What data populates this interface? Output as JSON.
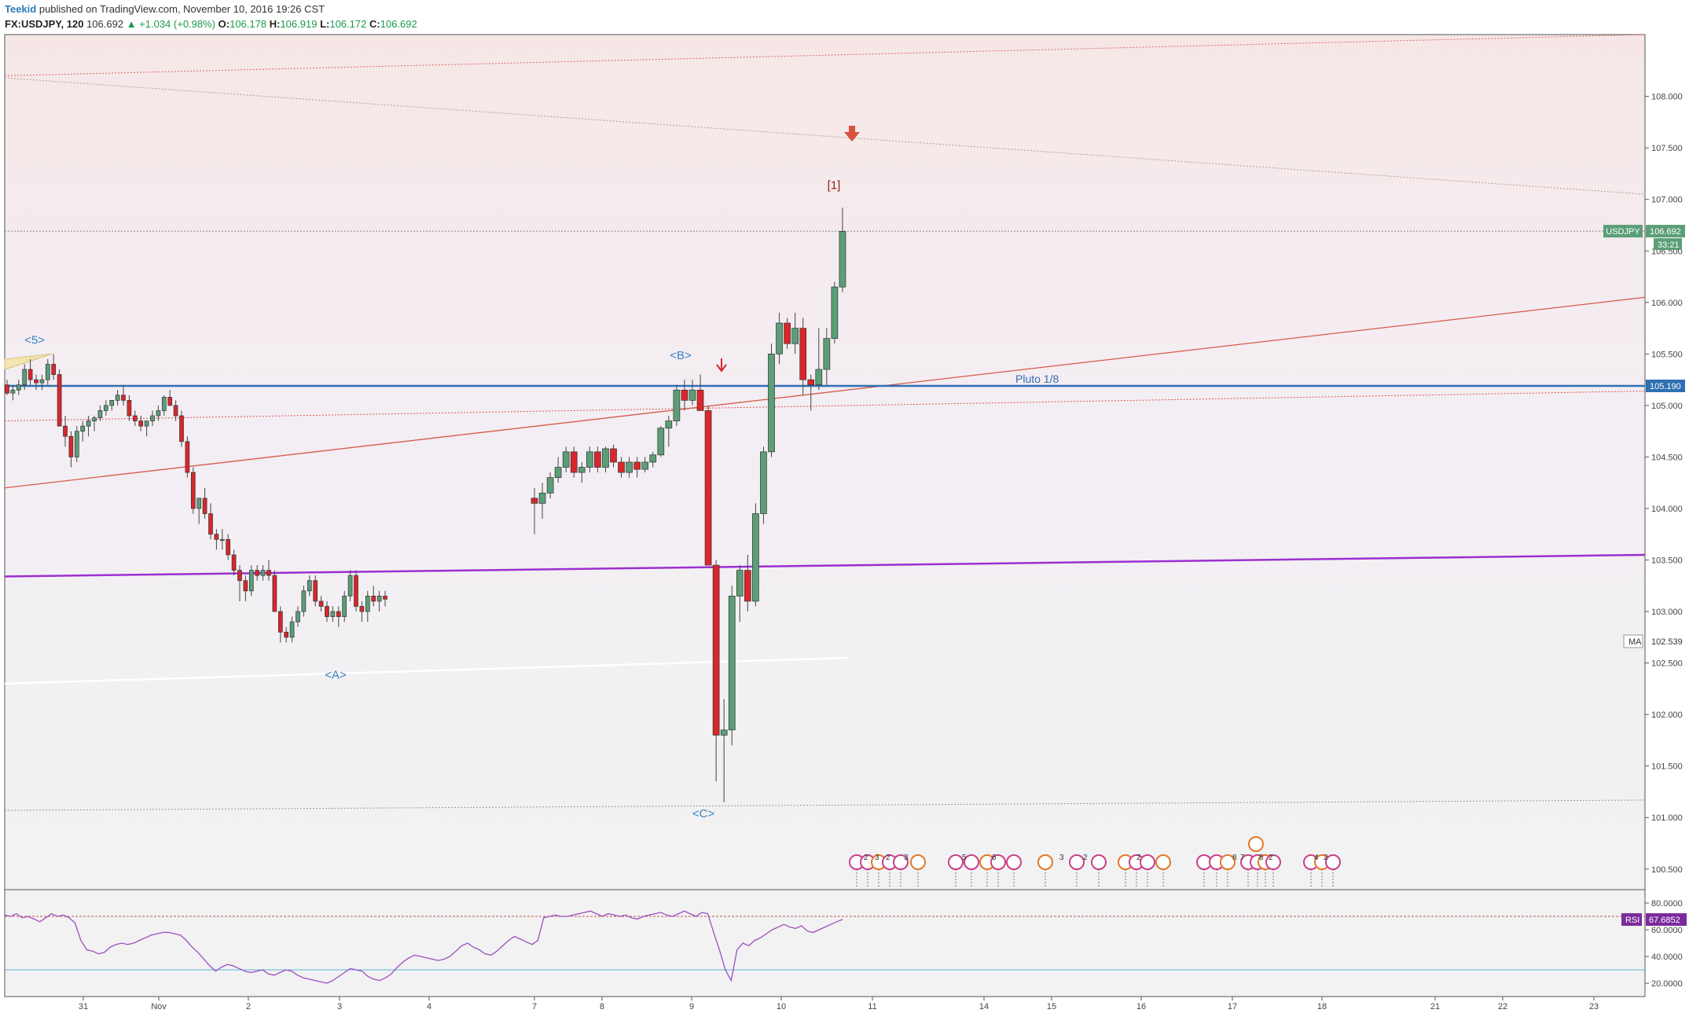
{
  "header": {
    "user": "Teekid",
    "published": "published on TradingView.com, November 10, 2016 19:26 CST",
    "symbol": "FX:USDJPY, 120",
    "last": "106.692",
    "change": "▲ +1.034 (+0.98%)",
    "o_label": "O:",
    "o_value": "106.178",
    "h_label": "H:",
    "h_value": "106.919",
    "l_label": "L:",
    "l_value": "106.172",
    "c_label": "C:",
    "c_value": "106.692"
  },
  "colors": {
    "up": "#5b9e78",
    "down": "#d9262b",
    "wave_label": "#3b82c4",
    "pluto_line": "#2f6fb3",
    "purple_line": "#9b2fd1",
    "red_trend": "#d65a4a",
    "rsi_line": "#9b4fc0",
    "rsi_badge": "#7b2a9c",
    "price_badge": "#5b9e78",
    "pluto_badge": "#2f6fb3"
  },
  "chart_data": {
    "type": "candlestick",
    "title": "FX:USDJPY, 120",
    "ylim": [
      100.3,
      108.6
    ],
    "y_ticks": [
      "108.000",
      "107.500",
      "107.000",
      "106.500",
      "106.000",
      "105.500",
      "105.000",
      "104.500",
      "104.000",
      "103.500",
      "103.000",
      "102.500",
      "102.000",
      "101.500",
      "101.000",
      "100.500"
    ],
    "x_ticks": [
      "31",
      "Nov",
      "2",
      "3",
      "4",
      "7",
      "8",
      "9",
      "10",
      "11",
      "14",
      "15",
      "16",
      "17",
      "18",
      "21",
      "22",
      "23"
    ],
    "candles": [
      [
        105.2,
        105.25,
        105.1,
        105.12
      ],
      [
        105.12,
        105.2,
        105.05,
        105.15
      ],
      [
        105.15,
        105.25,
        105.1,
        105.2
      ],
      [
        105.2,
        105.4,
        105.15,
        105.35
      ],
      [
        105.35,
        105.45,
        105.2,
        105.25
      ],
      [
        105.25,
        105.3,
        105.15,
        105.22
      ],
      [
        105.22,
        105.3,
        105.15,
        105.25
      ],
      [
        105.25,
        105.45,
        105.2,
        105.4
      ],
      [
        105.4,
        105.5,
        105.25,
        105.3
      ],
      [
        105.3,
        105.35,
        104.85,
        104.8
      ],
      [
        104.8,
        104.9,
        104.6,
        104.7
      ],
      [
        104.7,
        104.75,
        104.4,
        104.5
      ],
      [
        104.5,
        104.8,
        104.45,
        104.75
      ],
      [
        104.75,
        104.85,
        104.65,
        104.8
      ],
      [
        104.8,
        104.9,
        104.7,
        104.85
      ],
      [
        104.85,
        104.9,
        104.75,
        104.88
      ],
      [
        104.88,
        105.0,
        104.85,
        104.95
      ],
      [
        104.95,
        105.05,
        104.9,
        105.0
      ],
      [
        105.0,
        105.05,
        104.95,
        105.05
      ],
      [
        105.05,
        105.15,
        105.0,
        105.1
      ],
      [
        105.1,
        105.2,
        105.0,
        105.05
      ],
      [
        105.05,
        105.1,
        104.85,
        104.9
      ],
      [
        104.9,
        104.95,
        104.8,
        104.85
      ],
      [
        104.85,
        104.9,
        104.75,
        104.8
      ],
      [
        104.8,
        104.85,
        104.7,
        104.85
      ],
      [
        104.85,
        104.95,
        104.8,
        104.9
      ],
      [
        104.9,
        105.0,
        104.85,
        104.95
      ],
      [
        104.95,
        105.1,
        104.9,
        105.08
      ],
      [
        105.08,
        105.15,
        105.0,
        105.0
      ],
      [
        105.0,
        105.05,
        104.85,
        104.9
      ],
      [
        104.9,
        104.95,
        104.6,
        104.65
      ],
      [
        104.65,
        104.7,
        104.3,
        104.35
      ],
      [
        104.35,
        104.4,
        103.95,
        104.0
      ],
      [
        104.0,
        104.1,
        103.85,
        104.1
      ],
      [
        104.1,
        104.2,
        103.9,
        103.95
      ],
      [
        103.95,
        104.05,
        103.7,
        103.75
      ],
      [
        103.75,
        103.8,
        103.6,
        103.7
      ],
      [
        103.7,
        103.8,
        103.6,
        103.7
      ],
      [
        103.7,
        103.75,
        103.5,
        103.55
      ],
      [
        103.55,
        103.6,
        103.35,
        103.4
      ],
      [
        103.4,
        103.45,
        103.1,
        103.3
      ],
      [
        103.3,
        103.35,
        103.1,
        103.2
      ],
      [
        103.2,
        103.45,
        103.15,
        103.4
      ],
      [
        103.4,
        103.45,
        103.3,
        103.35
      ],
      [
        103.35,
        103.45,
        103.3,
        103.4
      ],
      [
        103.4,
        103.5,
        103.3,
        103.35
      ],
      [
        103.35,
        103.4,
        103.0,
        103.0
      ],
      [
        103.0,
        103.05,
        102.7,
        102.8
      ],
      [
        102.8,
        102.85,
        102.7,
        102.75
      ],
      [
        102.75,
        102.95,
        102.7,
        102.9
      ],
      [
        102.9,
        103.05,
        102.85,
        103.0
      ],
      [
        103.0,
        103.25,
        102.95,
        103.2
      ],
      [
        103.2,
        103.35,
        103.15,
        103.3
      ],
      [
        103.3,
        103.35,
        103.05,
        103.1
      ],
      [
        103.1,
        103.15,
        103.0,
        103.05
      ],
      [
        103.05,
        103.1,
        102.9,
        102.95
      ],
      [
        102.95,
        103.05,
        102.9,
        103.0
      ],
      [
        103.0,
        103.05,
        102.85,
        102.95
      ],
      [
        102.95,
        103.2,
        102.9,
        103.15
      ],
      [
        103.15,
        103.4,
        103.1,
        103.35
      ],
      [
        103.35,
        103.4,
        103.0,
        103.05
      ],
      [
        103.05,
        103.1,
        102.9,
        103.0
      ],
      [
        103.0,
        103.2,
        102.9,
        103.15
      ],
      [
        103.15,
        103.25,
        103.05,
        103.1
      ],
      [
        103.1,
        103.2,
        103.0,
        103.15
      ],
      [
        103.15,
        103.2,
        103.05,
        103.12
      ],
      [
        104.1,
        104.2,
        103.75,
        104.05
      ],
      [
        104.05,
        104.25,
        103.9,
        104.15
      ],
      [
        104.15,
        104.35,
        104.1,
        104.3
      ],
      [
        104.3,
        104.5,
        104.25,
        104.4
      ],
      [
        104.4,
        104.6,
        104.35,
        104.55
      ],
      [
        104.55,
        104.6,
        104.3,
        104.35
      ],
      [
        104.35,
        104.45,
        104.25,
        104.4
      ],
      [
        104.4,
        104.6,
        104.35,
        104.55
      ],
      [
        104.55,
        104.6,
        104.35,
        104.4
      ],
      [
        104.4,
        104.6,
        104.35,
        104.58
      ],
      [
        104.58,
        104.62,
        104.4,
        104.45
      ],
      [
        104.45,
        104.5,
        104.3,
        104.35
      ],
      [
        104.35,
        104.5,
        104.3,
        104.45
      ],
      [
        104.45,
        104.5,
        104.3,
        104.38
      ],
      [
        104.38,
        104.5,
        104.35,
        104.45
      ],
      [
        104.45,
        104.55,
        104.4,
        104.52
      ],
      [
        104.52,
        104.8,
        104.5,
        104.78
      ],
      [
        104.78,
        104.9,
        104.6,
        104.85
      ],
      [
        104.85,
        105.2,
        104.8,
        105.15
      ],
      [
        105.15,
        105.25,
        104.95,
        105.05
      ],
      [
        105.05,
        105.25,
        105.0,
        105.15
      ],
      [
        105.15,
        105.3,
        105.0,
        104.95
      ],
      [
        104.95,
        105.0,
        103.5,
        103.45
      ],
      [
        103.45,
        103.5,
        101.35,
        101.8
      ],
      [
        101.8,
        102.15,
        101.15,
        101.85
      ],
      [
        101.85,
        103.25,
        101.7,
        103.15
      ],
      [
        103.15,
        103.45,
        102.9,
        103.4
      ],
      [
        103.4,
        103.55,
        103.0,
        103.1
      ],
      [
        103.1,
        104.05,
        103.05,
        103.95
      ],
      [
        103.95,
        104.6,
        103.85,
        104.55
      ],
      [
        104.55,
        105.6,
        104.5,
        105.5
      ],
      [
        105.5,
        105.9,
        105.4,
        105.8
      ],
      [
        105.8,
        105.85,
        105.55,
        105.6
      ],
      [
        105.6,
        105.9,
        105.5,
        105.75
      ],
      [
        105.75,
        105.85,
        105.1,
        105.25
      ],
      [
        105.25,
        105.3,
        104.95,
        105.2
      ],
      [
        105.2,
        105.75,
        105.15,
        105.35
      ],
      [
        105.35,
        105.75,
        105.2,
        105.65
      ],
      [
        105.65,
        106.2,
        105.6,
        106.15
      ],
      [
        106.15,
        106.92,
        106.1,
        106.69
      ]
    ],
    "current_price": "106.692",
    "price_label": "USDJPY",
    "countdown": "33:21",
    "lines": [
      {
        "label": "Pluto 1/8",
        "value": "105.190"
      },
      {
        "label": "MA",
        "value": "102.539"
      }
    ],
    "wave_labels": [
      "<5>",
      "<A>",
      "<B>",
      "<C>",
      "[1]"
    ],
    "rsi": {
      "label": "RSI",
      "value": "67.6852",
      "ticks": [
        "80.0000",
        "60.0000",
        "40.0000",
        "20.0000"
      ],
      "levels": [
        70,
        30
      ],
      "values": [
        71,
        70,
        72,
        69,
        70,
        68,
        66,
        69,
        72,
        70,
        71,
        69,
        65,
        52,
        45,
        44,
        42,
        43,
        47,
        49,
        50,
        49,
        50,
        52,
        54,
        56,
        57,
        58,
        58,
        57,
        56,
        52,
        47,
        43,
        38,
        33,
        29,
        32,
        34,
        33,
        31,
        29,
        28,
        29,
        30,
        27,
        26,
        28,
        30,
        29,
        26,
        24,
        23,
        22,
        21,
        20,
        22,
        25,
        28,
        31,
        30,
        29,
        25,
        23,
        22,
        24,
        27,
        32,
        36,
        39,
        41,
        40,
        39,
        38,
        37,
        38,
        40,
        44,
        48,
        50,
        47,
        45,
        42,
        41,
        44,
        48,
        52,
        55,
        53,
        51,
        49,
        52,
        69,
        70,
        71,
        70,
        70,
        71,
        72,
        73,
        74,
        72,
        70,
        72,
        71,
        70,
        71,
        69,
        68,
        70,
        71,
        72,
        73,
        71,
        70,
        72,
        74,
        72,
        70,
        73,
        72,
        58,
        45,
        30,
        22,
        45,
        50,
        48,
        52,
        54,
        57,
        60,
        62,
        64,
        62,
        61,
        63,
        59,
        58,
        60,
        62,
        64,
        66,
        67.69
      ],
      "ylim": [
        10,
        90
      ]
    },
    "event_labels": [
      "2",
      "3",
      "2",
      "3",
      "5",
      "6",
      "3",
      "2",
      "2",
      "8",
      "7",
      "8",
      "2",
      "4",
      "2",
      "14",
      "2"
    ]
  }
}
